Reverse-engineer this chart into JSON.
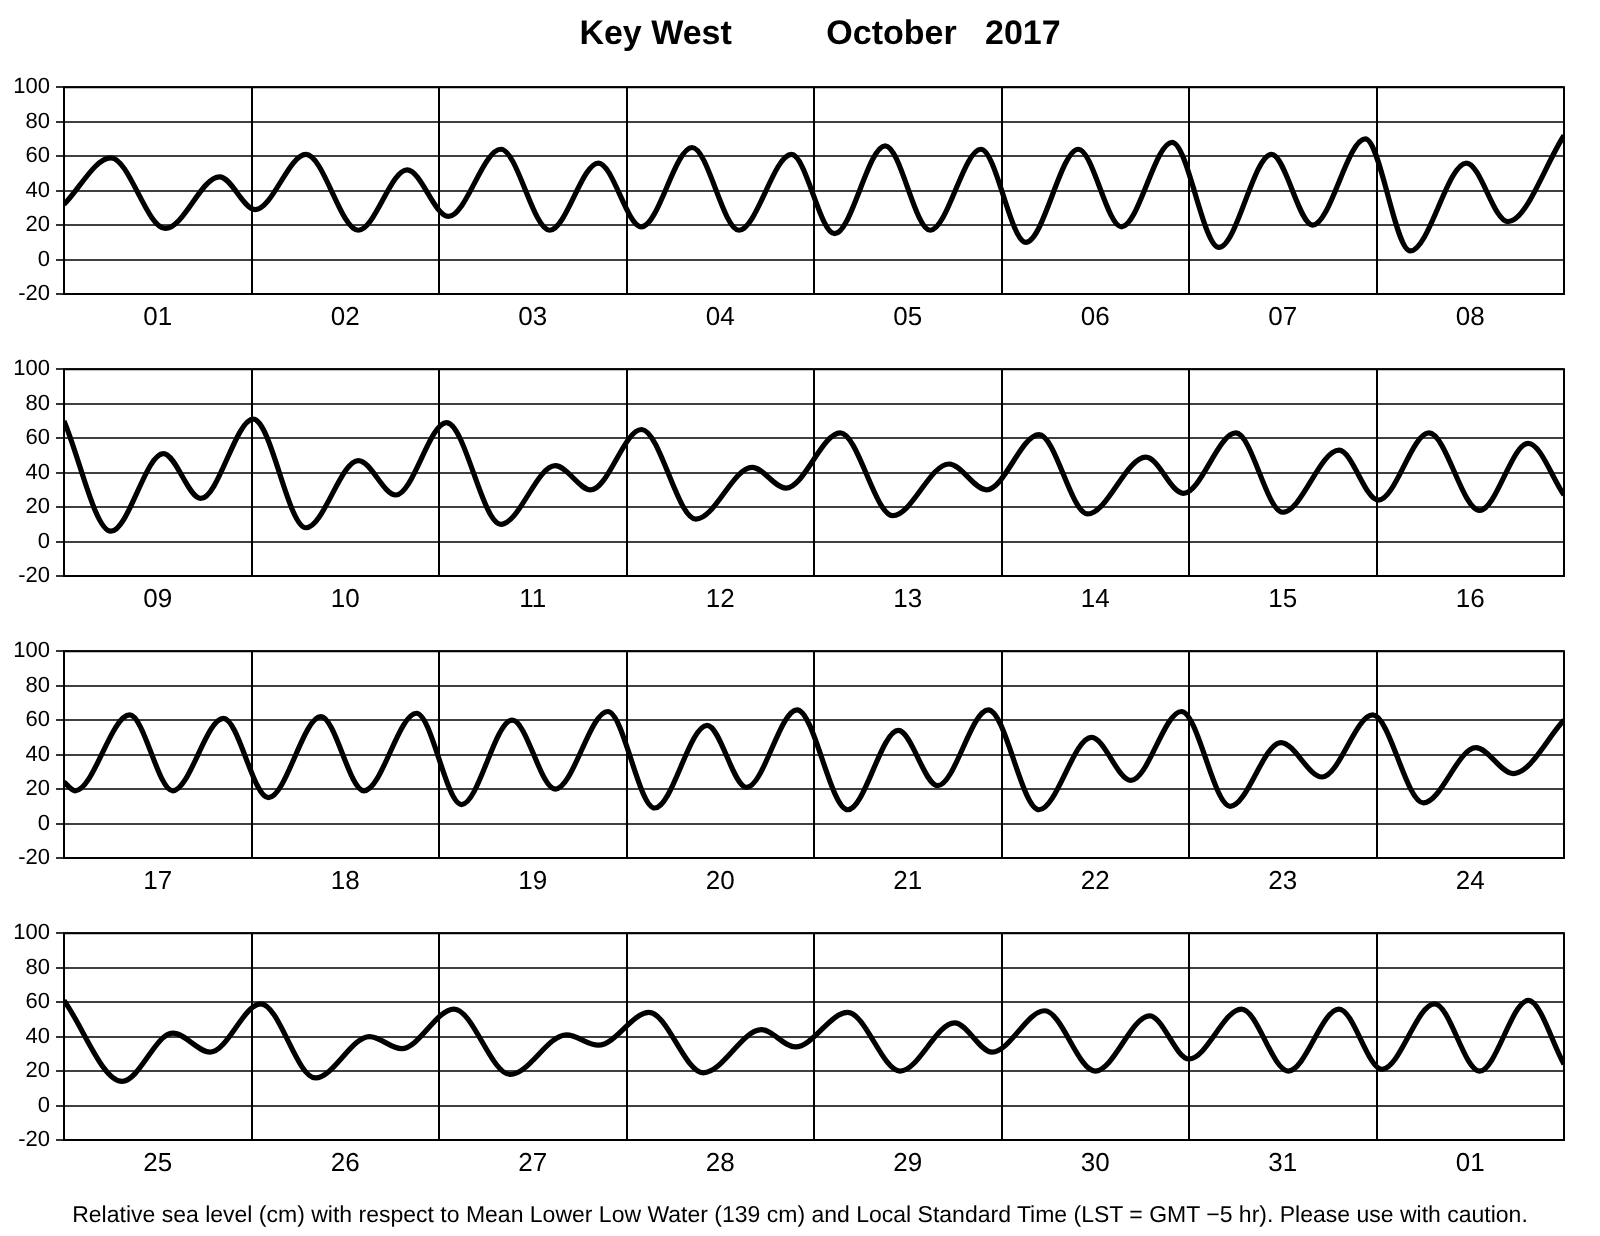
{
  "chart_data": [
    {
      "type": "line",
      "title": "Key West          October   2017",
      "xlim": [
        "2017-10-01T00:00",
        "2017-10-09T00:00"
      ],
      "xticks": [
        {
          "value": "2017-10-01T00:00",
          "label": null
        },
        {
          "value": "2017-10-01T12:00",
          "label": "01"
        },
        {
          "value": "2017-10-02T00:00",
          "label": null
        },
        {
          "value": "2017-10-02T12:00",
          "label": "02"
        },
        {
          "value": "2017-10-03T00:00",
          "label": null
        },
        {
          "value": "2017-10-03T12:00",
          "label": "03"
        },
        {
          "value": "2017-10-04T00:00",
          "label": null
        },
        {
          "value": "2017-10-04T12:00",
          "label": "04"
        },
        {
          "value": "2017-10-05T00:00",
          "label": null
        },
        {
          "value": "2017-10-05T12:00",
          "label": "05"
        },
        {
          "value": "2017-10-06T00:00",
          "label": null
        },
        {
          "value": "2017-10-06T12:00",
          "label": "06"
        },
        {
          "value": "2017-10-07T00:00",
          "label": null
        },
        {
          "value": "2017-10-07T12:00",
          "label": "07"
        },
        {
          "value": "2017-10-08T00:00",
          "label": null
        },
        {
          "value": "2017-10-08T12:00",
          "label": "08"
        },
        {
          "value": "2017-10-09T00:00",
          "label": null
        }
      ],
      "ylim": [
        -20,
        100
      ],
      "yticks": [
        -20,
        0,
        20,
        40,
        60,
        80,
        100
      ],
      "grid": true,
      "marker": "none",
      "line_style": "solid",
      "series": [
        {
          "color": "#000000",
          "x": [
            "2017-10-01T00:00",
            "2017-10-01T06:00",
            "2017-10-01T12:58",
            "2017-10-01T19:55",
            "2017-10-02T00:29",
            "2017-10-02T06:58",
            "2017-10-02T13:41",
            "2017-10-02T19:55",
            "2017-10-03T01:12",
            "2017-10-03T07:55",
            "2017-10-03T14:10",
            "2017-10-03T20:24",
            "2017-10-04T01:55",
            "2017-10-04T08:24",
            "2017-10-04T14:24",
            "2017-10-04T21:07",
            "2017-10-05T02:38",
            "2017-10-05T09:07",
            "2017-10-05T14:53",
            "2017-10-05T21:22",
            "2017-10-06T03:07",
            "2017-10-06T09:50",
            "2017-10-06T15:22",
            "2017-10-06T21:50",
            "2017-10-07T03:50",
            "2017-10-07T10:34",
            "2017-10-07T15:50",
            "2017-10-07T22:34",
            "2017-10-08T04:19",
            "2017-10-08T11:31",
            "2017-10-08T16:48",
            "2017-10-09T00:00"
          ],
          "values": [
            32,
            59,
            18,
            48,
            29,
            61,
            17,
            52,
            25,
            64,
            17,
            56,
            19,
            65,
            17,
            61,
            15,
            66,
            17,
            64,
            10,
            64,
            19,
            68,
            7,
            61,
            20,
            70,
            5,
            56,
            22,
            72
          ]
        }
      ]
    },
    {
      "type": "line",
      "xlim": [
        "2017-10-09T00:00",
        "2017-10-17T00:00"
      ],
      "xticks": [
        {
          "value": "2017-10-09T00:00",
          "label": null
        },
        {
          "value": "2017-10-09T12:00",
          "label": "09"
        },
        {
          "value": "2017-10-10T00:00",
          "label": null
        },
        {
          "value": "2017-10-10T12:00",
          "label": "10"
        },
        {
          "value": "2017-10-11T00:00",
          "label": null
        },
        {
          "value": "2017-10-11T12:00",
          "label": "11"
        },
        {
          "value": "2017-10-12T00:00",
          "label": null
        },
        {
          "value": "2017-10-12T12:00",
          "label": "12"
        },
        {
          "value": "2017-10-13T00:00",
          "label": null
        },
        {
          "value": "2017-10-13T12:00",
          "label": "13"
        },
        {
          "value": "2017-10-14T00:00",
          "label": null
        },
        {
          "value": "2017-10-14T12:00",
          "label": "14"
        },
        {
          "value": "2017-10-15T00:00",
          "label": null
        },
        {
          "value": "2017-10-15T12:00",
          "label": "15"
        },
        {
          "value": "2017-10-16T00:00",
          "label": null
        },
        {
          "value": "2017-10-16T12:00",
          "label": "16"
        },
        {
          "value": "2017-10-17T00:00",
          "label": null
        }
      ],
      "ylim": [
        -20,
        100
      ],
      "yticks": [
        -20,
        0,
        20,
        40,
        60,
        80,
        100
      ],
      "grid": true,
      "marker": "none",
      "line_style": "solid",
      "series": [
        {
          "color": "#000000",
          "x": [
            "2017-10-09T00:00",
            "2017-10-09T06:00",
            "2017-10-09T12:43",
            "2017-10-09T17:31",
            "2017-10-10T00:14",
            "2017-10-10T06:58",
            "2017-10-10T13:41",
            "2017-10-10T18:29",
            "2017-10-11T00:58",
            "2017-10-11T07:55",
            "2017-10-11T14:53",
            "2017-10-11T19:26",
            "2017-10-12T01:55",
            "2017-10-12T08:53",
            "2017-10-12T16:05",
            "2017-10-12T20:24",
            "2017-10-13T03:22",
            "2017-10-13T10:05",
            "2017-10-13T17:17",
            "2017-10-13T22:05",
            "2017-10-14T04:48",
            "2017-10-14T11:02",
            "2017-10-14T18:29",
            "2017-10-14T23:17",
            "2017-10-15T06:00",
            "2017-10-15T12:00",
            "2017-10-15T19:12",
            "2017-10-16T00:14",
            "2017-10-16T06:43",
            "2017-10-16T13:12",
            "2017-10-16T19:26",
            "2017-10-17T00:00"
          ],
          "values": [
            70,
            6,
            51,
            25,
            71,
            8,
            47,
            27,
            69,
            10,
            44,
            30,
            65,
            13,
            43,
            31,
            63,
            15,
            45,
            30,
            62,
            16,
            49,
            28,
            63,
            17,
            53,
            24,
            63,
            18,
            57,
            27
          ]
        }
      ]
    },
    {
      "type": "line",
      "xlim": [
        "2017-10-17T00:00",
        "2017-10-25T00:00"
      ],
      "xticks": [
        {
          "value": "2017-10-17T00:00",
          "label": null
        },
        {
          "value": "2017-10-17T12:00",
          "label": "17"
        },
        {
          "value": "2017-10-18T00:00",
          "label": null
        },
        {
          "value": "2017-10-18T12:00",
          "label": "18"
        },
        {
          "value": "2017-10-19T00:00",
          "label": null
        },
        {
          "value": "2017-10-19T12:00",
          "label": "19"
        },
        {
          "value": "2017-10-20T00:00",
          "label": null
        },
        {
          "value": "2017-10-20T12:00",
          "label": "20"
        },
        {
          "value": "2017-10-21T00:00",
          "label": null
        },
        {
          "value": "2017-10-21T12:00",
          "label": "21"
        },
        {
          "value": "2017-10-22T00:00",
          "label": null
        },
        {
          "value": "2017-10-22T12:00",
          "label": "22"
        },
        {
          "value": "2017-10-23T00:00",
          "label": null
        },
        {
          "value": "2017-10-23T12:00",
          "label": "23"
        },
        {
          "value": "2017-10-24T00:00",
          "label": null
        },
        {
          "value": "2017-10-24T12:00",
          "label": "24"
        },
        {
          "value": "2017-10-25T00:00",
          "label": null
        }
      ],
      "ylim": [
        -20,
        100
      ],
      "yticks": [
        -20,
        0,
        20,
        40,
        60,
        80,
        100
      ],
      "grid": true,
      "marker": "none",
      "line_style": "solid",
      "series": [
        {
          "color": "#000000",
          "x": [
            "2017-10-17T00:00",
            "2017-10-17T01:26",
            "2017-10-17T08:24",
            "2017-10-17T13:55",
            "2017-10-17T20:24",
            "2017-10-18T02:10",
            "2017-10-18T08:53",
            "2017-10-18T14:24",
            "2017-10-18T21:07",
            "2017-10-19T02:53",
            "2017-10-19T09:22",
            "2017-10-19T14:53",
            "2017-10-19T21:36",
            "2017-10-20T03:36",
            "2017-10-20T10:19",
            "2017-10-20T15:22",
            "2017-10-20T21:50",
            "2017-10-21T04:19",
            "2017-10-21T10:48",
            "2017-10-21T15:50",
            "2017-10-21T22:19",
            "2017-10-22T04:48",
            "2017-10-22T11:31",
            "2017-10-22T16:34",
            "2017-10-22T23:02",
            "2017-10-23T05:17",
            "2017-10-23T11:46",
            "2017-10-23T17:02",
            "2017-10-23T23:31",
            "2017-10-24T06:00",
            "2017-10-24T12:43",
            "2017-10-24T17:31",
            "2017-10-25T00:00"
          ],
          "values": [
            24,
            19,
            63,
            19,
            61,
            15,
            62,
            19,
            64,
            11,
            60,
            20,
            65,
            9,
            57,
            21,
            66,
            8,
            54,
            22,
            66,
            8,
            50,
            25,
            65,
            10,
            47,
            27,
            63,
            12,
            44,
            29,
            60
          ]
        }
      ]
    },
    {
      "type": "line",
      "xlim": [
        "2017-10-25T00:00",
        "2017-11-02T00:00"
      ],
      "xticks": [
        {
          "value": "2017-10-25T00:00",
          "label": null
        },
        {
          "value": "2017-10-25T12:00",
          "label": "25"
        },
        {
          "value": "2017-10-26T00:00",
          "label": null
        },
        {
          "value": "2017-10-26T12:00",
          "label": "26"
        },
        {
          "value": "2017-10-27T00:00",
          "label": null
        },
        {
          "value": "2017-10-27T12:00",
          "label": "27"
        },
        {
          "value": "2017-10-28T00:00",
          "label": null
        },
        {
          "value": "2017-10-28T12:00",
          "label": "28"
        },
        {
          "value": "2017-10-29T00:00",
          "label": null
        },
        {
          "value": "2017-10-29T12:00",
          "label": "29"
        },
        {
          "value": "2017-10-30T00:00",
          "label": null
        },
        {
          "value": "2017-10-30T12:00",
          "label": "30"
        },
        {
          "value": "2017-10-31T00:00",
          "label": null
        },
        {
          "value": "2017-10-31T12:00",
          "label": "31"
        },
        {
          "value": "2017-11-01T00:00",
          "label": null
        },
        {
          "value": "2017-11-01T12:00",
          "label": "01"
        },
        {
          "value": "2017-11-02T00:00",
          "label": null
        }
      ],
      "ylim": [
        -20,
        100
      ],
      "yticks": [
        -20,
        0,
        20,
        40,
        60,
        80,
        100
      ],
      "grid": true,
      "marker": "none",
      "line_style": "solid",
      "annotations": [
        "Relative sea level (cm) with respect to Mean Lower Low Water (139 cm) and Local Standard Time (LST = GMT −5 hr). Please use with caution."
      ],
      "series": [
        {
          "color": "#000000",
          "x": [
            "2017-10-25T00:00",
            "2017-10-25T07:26",
            "2017-10-25T13:55",
            "2017-10-25T18:43",
            "2017-10-26T01:12",
            "2017-10-26T08:10",
            "2017-10-26T15:07",
            "2017-10-26T19:12",
            "2017-10-27T01:55",
            "2017-10-27T09:07",
            "2017-10-27T16:19",
            "2017-10-27T20:24",
            "2017-10-28T02:53",
            "2017-10-28T09:50",
            "2017-10-28T17:17",
            "2017-10-28T21:36",
            "2017-10-29T04:19",
            "2017-10-29T11:02",
            "2017-10-29T18:00",
            "2017-10-29T22:48",
            "2017-10-30T05:31",
            "2017-10-30T12:00",
            "2017-10-30T18:58",
            "2017-10-31T00:00",
            "2017-10-31T06:43",
            "2017-10-31T12:43",
            "2017-10-31T19:12",
            "2017-11-01T00:43",
            "2017-11-01T07:26",
            "2017-11-01T13:12",
            "2017-11-01T19:26",
            "2017-11-02T00:00"
          ],
          "values": [
            61,
            14,
            42,
            31,
            59,
            16,
            40,
            33,
            56,
            18,
            41,
            35,
            54,
            19,
            44,
            34,
            54,
            20,
            48,
            31,
            55,
            20,
            52,
            27,
            56,
            20,
            56,
            21,
            59,
            20,
            61,
            24
          ]
        }
      ]
    }
  ]
}
